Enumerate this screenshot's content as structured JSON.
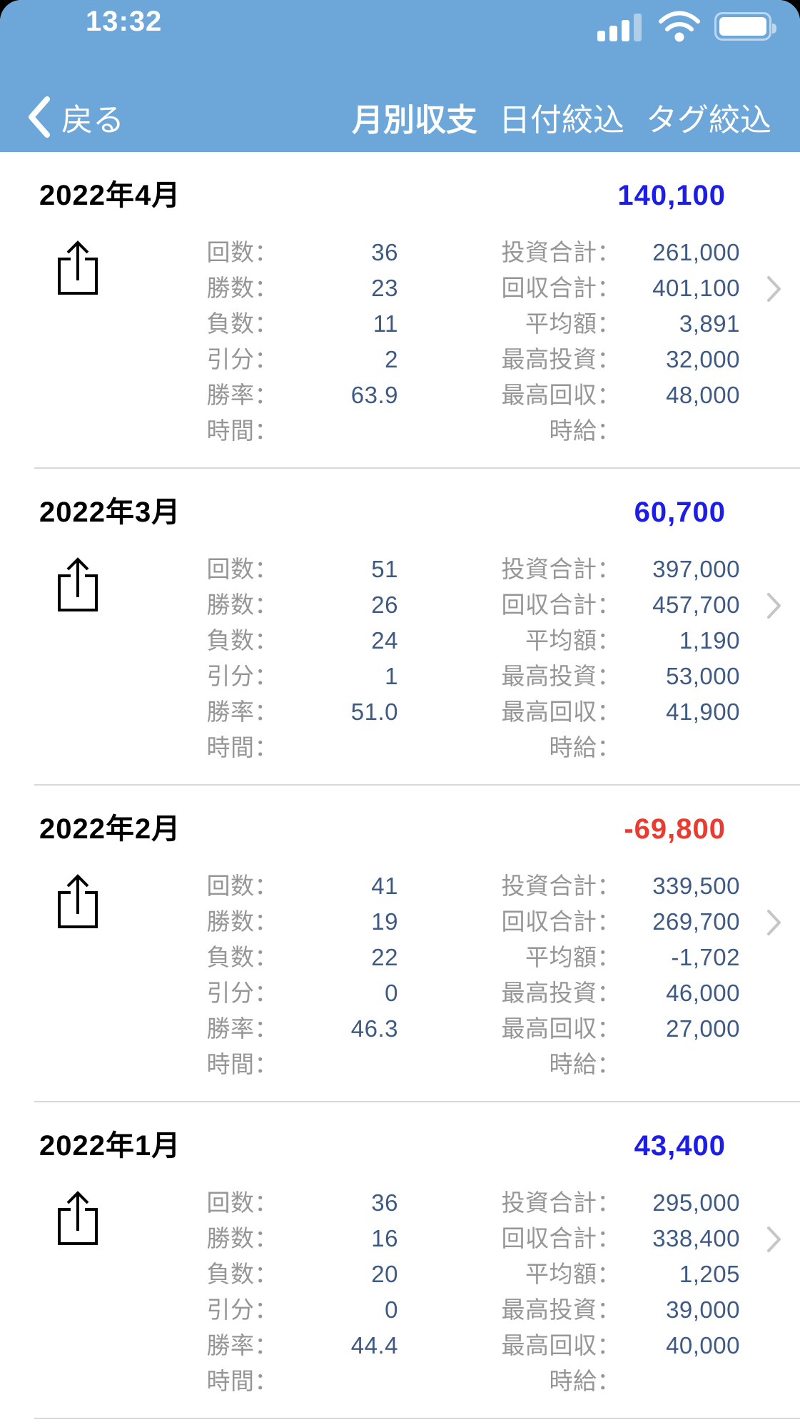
{
  "colors": {
    "header_blue": "#6da7d9",
    "positive_total": "#1d1de8",
    "negative_total": "#ea3b30",
    "value_navy": "#3e5a82",
    "label_gray": "#969696"
  },
  "status_bar": {
    "time": "13:32",
    "icons": [
      "signal-3of4",
      "wifi-full",
      "battery-full"
    ]
  },
  "nav": {
    "back_label": "戻る",
    "tabs": [
      {
        "label": "月別収支",
        "active": true
      },
      {
        "label": "日付絞込",
        "active": false
      },
      {
        "label": "タグ絞込",
        "active": false
      }
    ]
  },
  "row_labels": {
    "left": [
      "回数：",
      "勝数：",
      "負数：",
      "引分：",
      "勝率：",
      "時間："
    ],
    "right": [
      "投資合計：",
      "回収合計：",
      "平均額：",
      "最高投資：",
      "最高回収：",
      "時給："
    ]
  },
  "sections": [
    {
      "month": "2022年4月",
      "total": "140,100",
      "left_values": [
        "36",
        "23",
        "11",
        "2",
        "63.9",
        ""
      ],
      "right_values": [
        "261,000",
        "401,100",
        "3,891",
        "32,000",
        "48,000",
        ""
      ]
    },
    {
      "month": "2022年3月",
      "total": "60,700",
      "left_values": [
        "51",
        "26",
        "24",
        "1",
        "51.0",
        ""
      ],
      "right_values": [
        "397,000",
        "457,700",
        "1,190",
        "53,000",
        "41,900",
        ""
      ]
    },
    {
      "month": "2022年2月",
      "total": "-69,800",
      "left_values": [
        "41",
        "19",
        "22",
        "0",
        "46.3",
        ""
      ],
      "right_values": [
        "339,500",
        "269,700",
        "-1,702",
        "46,000",
        "27,000",
        ""
      ]
    },
    {
      "month": "2022年1月",
      "total": "43,400",
      "left_values": [
        "36",
        "16",
        "20",
        "0",
        "44.4",
        ""
      ],
      "right_values": [
        "295,000",
        "338,400",
        "1,205",
        "39,000",
        "40,000",
        ""
      ]
    }
  ]
}
